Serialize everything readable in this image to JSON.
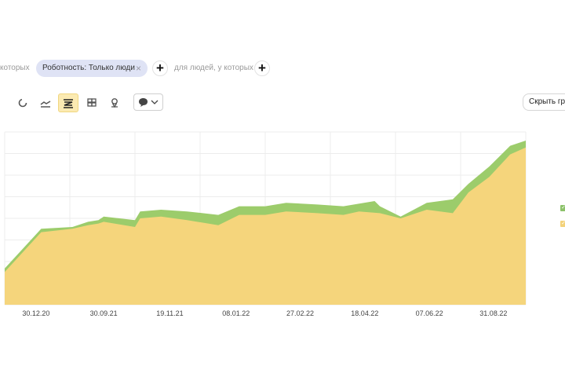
{
  "filters": {
    "left_faded_text": "которых",
    "active_filter": {
      "label": "Роботность: Только люди",
      "remove_icon": "×"
    },
    "add_icon": "+",
    "people_filter_text": "для людей, у которых"
  },
  "toolbar": {
    "chart_types": [
      {
        "icon": "pie-chart-icon",
        "active": false
      },
      {
        "icon": "line-chart-icon",
        "active": false
      },
      {
        "icon": "stacked-area-icon",
        "active": true
      },
      {
        "icon": "bar-chart-icon",
        "active": false
      },
      {
        "icon": "map-pin-icon",
        "active": false
      }
    ],
    "comment_select": {
      "icon": "speech-bubble-icon",
      "arrow": "chevron-down-icon"
    },
    "hide_button_label": "Скрыть гр"
  },
  "chart_data": {
    "type": "area",
    "stacked": true,
    "x": [
      "30.12.20",
      "30.09.21",
      "19.11.21",
      "08.01.22",
      "27.02.22",
      "18.04.22",
      "07.06.22",
      "31.08.22"
    ],
    "x_ticks": [
      "30.12.20",
      "30.09.21",
      "19.11.21",
      "08.01.22",
      "27.02.22",
      "18.04.22",
      "07.06.22",
      "31.08.22"
    ],
    "y_ticks": [],
    "ylim": [
      0,
      100
    ],
    "grid": true,
    "legend": "right",
    "series": [
      {
        "color": "#f5d57c",
        "values": [
          20,
          45,
          48,
          47,
          47,
          44,
          43,
          65
        ]
      },
      {
        "color": "#9ccc6b",
        "values": [
          2,
          2,
          3,
          3,
          5,
          4,
          7,
          6
        ]
      }
    ],
    "points": {
      "bottom": [
        [
          0.0,
          19
        ],
        [
          0.07,
          42
        ],
        [
          0.13,
          44
        ],
        [
          0.16,
          46
        ],
        [
          0.18,
          47
        ],
        [
          0.19,
          48
        ],
        [
          0.25,
          45
        ],
        [
          0.26,
          50
        ],
        [
          0.3,
          51
        ],
        [
          0.35,
          49
        ],
        [
          0.41,
          46
        ],
        [
          0.45,
          52
        ],
        [
          0.5,
          52
        ],
        [
          0.54,
          54
        ],
        [
          0.6,
          53
        ],
        [
          0.65,
          52
        ],
        [
          0.68,
          54
        ],
        [
          0.72,
          53
        ],
        [
          0.76,
          50
        ],
        [
          0.81,
          55
        ],
        [
          0.86,
          53
        ],
        [
          0.89,
          65
        ],
        [
          0.93,
          74
        ],
        [
          0.97,
          87
        ],
        [
          1.0,
          91
        ]
      ],
      "top": [
        [
          0.0,
          21
        ],
        [
          0.07,
          44
        ],
        [
          0.13,
          45
        ],
        [
          0.16,
          48
        ],
        [
          0.18,
          49
        ],
        [
          0.19,
          51
        ],
        [
          0.25,
          49
        ],
        [
          0.26,
          54
        ],
        [
          0.3,
          55
        ],
        [
          0.35,
          54
        ],
        [
          0.41,
          52
        ],
        [
          0.45,
          57
        ],
        [
          0.5,
          57
        ],
        [
          0.54,
          59
        ],
        [
          0.6,
          58
        ],
        [
          0.65,
          57
        ],
        [
          0.71,
          60
        ],
        [
          0.72,
          57
        ],
        [
          0.76,
          51
        ],
        [
          0.81,
          59
        ],
        [
          0.86,
          61
        ],
        [
          0.89,
          70
        ],
        [
          0.93,
          80
        ],
        [
          0.97,
          92
        ],
        [
          1.0,
          95
        ]
      ]
    },
    "legend_marks": [
      {
        "color": "#8cc26a",
        "check": "✓"
      },
      {
        "color": "#f3d27a",
        "check": "✓"
      }
    ]
  }
}
